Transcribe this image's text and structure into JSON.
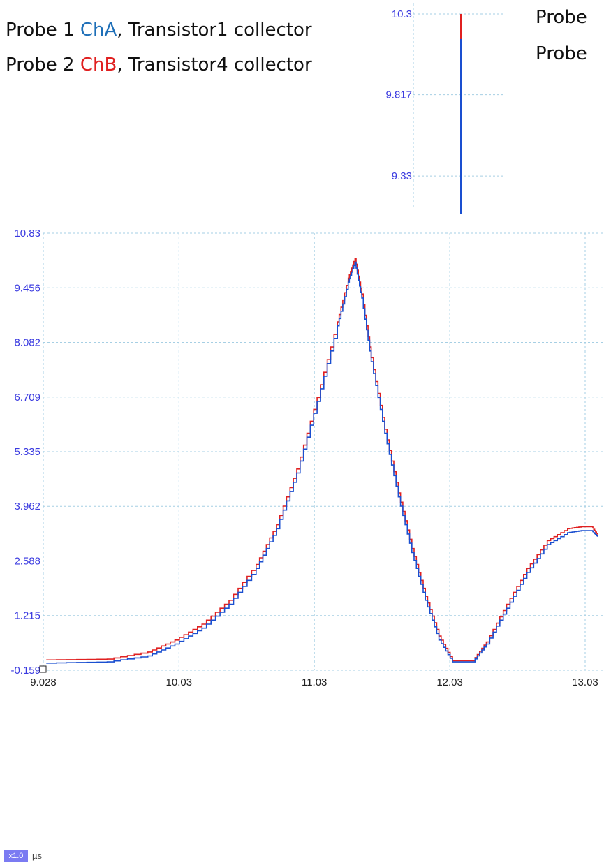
{
  "captions": {
    "line1": {
      "prefix": "Probe 1 ",
      "channel": "ChA",
      "suffix": ", Transistor1 collector"
    },
    "line2": {
      "prefix": "Probe 2 ",
      "channel": "ChB",
      "suffix": ", Transistor4 collector"
    },
    "right1": "Probe",
    "right2": "Probe"
  },
  "colors": {
    "chA": "#1a4fd0",
    "chB": "#e02020",
    "chA_text": "#1e6fb8",
    "grid": "#a6cfe4",
    "ytick": "#3a3ae0",
    "xtick": "#222222"
  },
  "footer": {
    "zoom_badge": "x1.0",
    "unit": "µs"
  },
  "chart_data": [
    {
      "type": "line",
      "title": "",
      "grid": true,
      "xlim": [
        9.028,
        13.12
      ],
      "ylim": [
        -0.159,
        10.83
      ],
      "x_ticks": [
        "9.028",
        "10.03",
        "11.03",
        "12.03",
        "13.03"
      ],
      "y_ticks": [
        "10.83",
        "9.456",
        "8.082",
        "6.709",
        "5.335",
        "3.962",
        "2.588",
        "1.215",
        "-0.159"
      ],
      "series": [
        {
          "name": "ChA",
          "x": [
            9.05,
            9.5,
            9.8,
            10.0,
            10.2,
            10.4,
            10.6,
            10.75,
            10.9,
            11.05,
            11.2,
            11.28,
            11.33,
            11.38,
            11.45,
            11.55,
            11.65,
            11.75,
            11.85,
            11.95,
            12.05,
            12.2,
            12.3,
            12.45,
            12.6,
            12.75,
            12.9,
            13.0,
            13.08,
            13.12
          ],
          "y": [
            0.02,
            0.05,
            0.2,
            0.5,
            0.9,
            1.5,
            2.4,
            3.4,
            4.8,
            6.6,
            8.5,
            9.6,
            10.1,
            9.2,
            7.6,
            5.8,
            4.2,
            2.8,
            1.6,
            0.6,
            0.05,
            0.05,
            0.5,
            1.4,
            2.3,
            3.0,
            3.3,
            3.35,
            3.35,
            3.2
          ]
        },
        {
          "name": "ChB",
          "x": [
            9.05,
            9.5,
            9.8,
            10.0,
            10.2,
            10.4,
            10.6,
            10.75,
            10.9,
            11.05,
            11.2,
            11.28,
            11.33,
            11.38,
            11.45,
            11.55,
            11.65,
            11.75,
            11.85,
            11.95,
            12.05,
            12.2,
            12.3,
            12.45,
            12.6,
            12.75,
            12.9,
            13.0,
            13.08,
            13.12
          ],
          "y": [
            0.1,
            0.12,
            0.3,
            0.6,
            1.0,
            1.6,
            2.5,
            3.5,
            4.9,
            6.7,
            8.6,
            9.7,
            10.2,
            9.3,
            7.7,
            5.9,
            4.3,
            2.9,
            1.7,
            0.7,
            0.08,
            0.08,
            0.55,
            1.5,
            2.4,
            3.1,
            3.4,
            3.45,
            3.45,
            3.25
          ]
        }
      ]
    },
    {
      "type": "line",
      "title": "",
      "grid": true,
      "ylim": [
        9.13,
        10.3
      ],
      "y_ticks": [
        "10.3",
        "9.817",
        "9.33"
      ],
      "series": [
        {
          "name": "ChA",
          "x": [
            0,
            0
          ],
          "y": [
            9.13,
            10.15
          ]
        },
        {
          "name": "ChB",
          "x": [
            0,
            0
          ],
          "y": [
            9.45,
            10.3
          ]
        }
      ]
    }
  ]
}
